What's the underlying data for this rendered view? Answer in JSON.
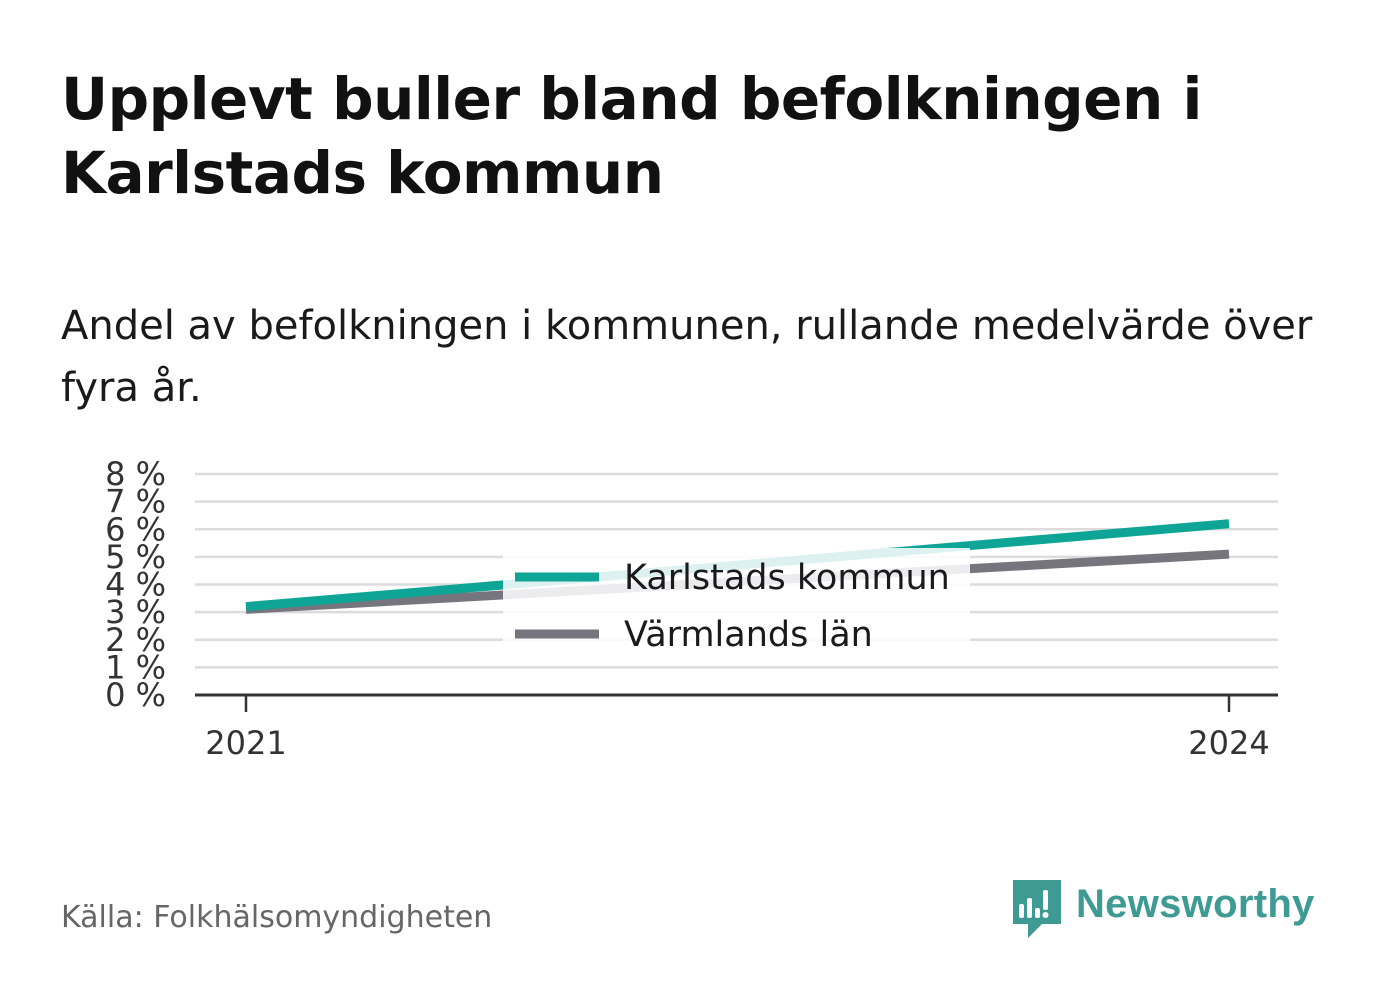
{
  "title": "Upplevt buller bland befolkningen i Karlstads kommun",
  "subtitle": "Andel av befolkningen i kommunen, rullande medelvärde över fyra år.",
  "source": "Källa: Folkhälsomyndigheten",
  "brand": {
    "name": "Newsworthy",
    "icon": "newsworthy-logo-icon",
    "color": "#3d9b93"
  },
  "chart_data": {
    "type": "line",
    "x": [
      "2021",
      "2024"
    ],
    "series": [
      {
        "name": "Karlstads kommun",
        "values": [
          3.2,
          6.2
        ],
        "color": "#0ea596"
      },
      {
        "name": "Värmlands län",
        "values": [
          3.1,
          5.1
        ],
        "color": "#76757d"
      }
    ],
    "y_ticks": [
      "0 %",
      "1 %",
      "2 %",
      "3 %",
      "4 %",
      "5 %",
      "6 %",
      "7 %",
      "8 %"
    ],
    "ylim": [
      0,
      8
    ],
    "grid": true,
    "legend_position": "center"
  }
}
